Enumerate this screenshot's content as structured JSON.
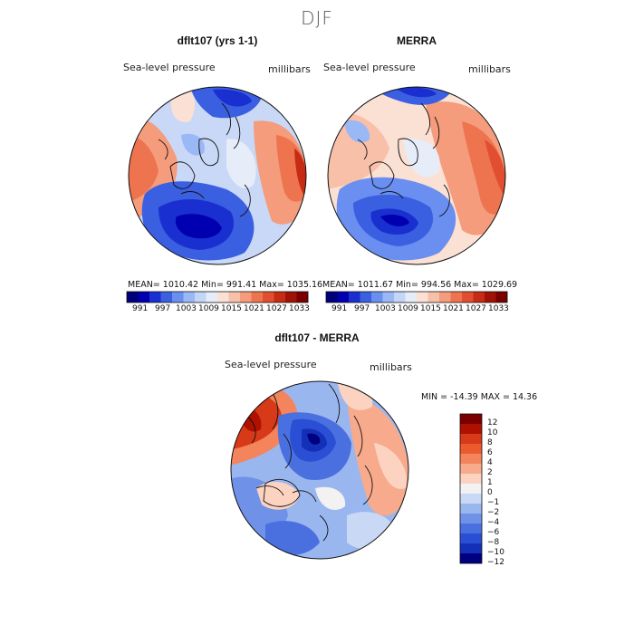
{
  "page": {
    "title": "DJF"
  },
  "chart_data": [
    {
      "type": "heatmap",
      "projection": "north polar stereographic",
      "title": "dflt107 (yrs 1-1)",
      "variable_label": "Sea-level pressure",
      "units_label": "millibars",
      "stats_text": "MEAN= 1010.42   Min= 991.41   Max= 1035.16",
      "stats": {
        "mean": 1010.42,
        "min": 991.41,
        "max": 1035.16
      },
      "colorbar_ticks": [
        "991",
        "997",
        "1003",
        "1009",
        "1015",
        "1021",
        "1027",
        "1033"
      ]
    },
    {
      "type": "heatmap",
      "projection": "north polar stereographic",
      "title": "MERRA",
      "variable_label": "Sea-level pressure",
      "units_label": "millibars",
      "stats_text": "MEAN= 1011.67   Min= 994.56   Max= 1029.69",
      "stats": {
        "mean": 1011.67,
        "min": 994.56,
        "max": 1029.69
      },
      "colorbar_ticks": [
        "991",
        "997",
        "1003",
        "1009",
        "1015",
        "1021",
        "1027",
        "1033"
      ]
    },
    {
      "type": "heatmap",
      "projection": "north polar stereographic",
      "title": "dflt107 - MERRA",
      "variable_label": "Sea-level pressure",
      "units_label": "millibars",
      "stats_text": "MIN = -14.39 MAX =  14.36",
      "stats": {
        "min": -14.39,
        "max": 14.36
      },
      "colorbar_ticks": [
        "12",
        "10",
        "8",
        "6",
        "4",
        "2",
        "1",
        "0",
        "−1",
        "−2",
        "−4",
        "−6",
        "−8",
        "−10",
        "−12"
      ]
    }
  ],
  "palettes": {
    "absolute": [
      "#00007a",
      "#0000b0",
      "#1a2fd0",
      "#3a5fe0",
      "#6a8ff0",
      "#9ab8f5",
      "#c4d6f7",
      "#e6edf8",
      "#fbe0d4",
      "#f8c0a8",
      "#f49c7c",
      "#ee7450",
      "#e14f30",
      "#c62b14",
      "#a01206",
      "#7a0000"
    ],
    "difference": [
      "#7a0000",
      "#b01000",
      "#d63a18",
      "#ec5a30",
      "#f4845c",
      "#f8ab8c",
      "#fbd3c0",
      "#f2f2f2",
      "#c8d8f5",
      "#9ab6ef",
      "#6f92e8",
      "#4a70e0",
      "#2a4ed4",
      "#1430b8",
      "#000080"
    ]
  }
}
